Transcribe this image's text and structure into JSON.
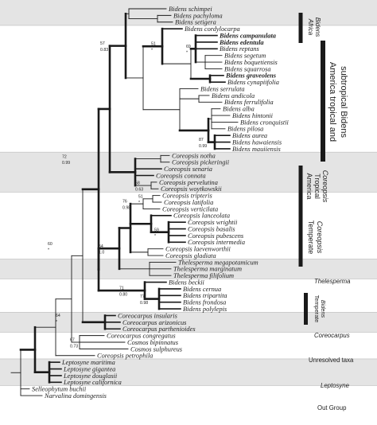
{
  "figure": {
    "taxa": [
      {
        "name": "Bidens schimpei",
        "bold": false
      },
      {
        "name": "Bidens pachyloma",
        "bold": false
      },
      {
        "name": "Bidens setigera",
        "bold": false
      },
      {
        "name": "Bidens cordylocarpa",
        "bold": false
      },
      {
        "name": "Bidens campanulata",
        "bold": true
      },
      {
        "name": "Bidens edentula",
        "bold": true
      },
      {
        "name": "Bidens reptans",
        "bold": false
      },
      {
        "name": "Bidens segetum",
        "bold": false
      },
      {
        "name": "Bidens boquetiensis",
        "bold": false
      },
      {
        "name": "Bidens squarrosa",
        "bold": false
      },
      {
        "name": "Bidens graveolens",
        "bold": true
      },
      {
        "name": "Bidens cynapiifolia",
        "bold": false
      },
      {
        "name": "Bidens serrulata",
        "bold": false
      },
      {
        "name": "Bidens andicola",
        "bold": false
      },
      {
        "name": "Bidens ferrulifolia",
        "bold": false
      },
      {
        "name": "Bidens alba",
        "bold": false
      },
      {
        "name": "Bidens hintonii",
        "bold": false
      },
      {
        "name": "Bidens cronquistii",
        "bold": false
      },
      {
        "name": "Bidens pilosa",
        "bold": false
      },
      {
        "name": "Bidens aurea",
        "bold": false
      },
      {
        "name": "Bidens hawaiensis",
        "bold": false
      },
      {
        "name": "Bidens mauiiensis",
        "bold": false
      },
      {
        "name": "Coreopsis notha",
        "bold": false
      },
      {
        "name": "Coreopsis pickeringii",
        "bold": false
      },
      {
        "name": "Coreopsis senaria",
        "bold": false
      },
      {
        "name": "Coreopsis connata",
        "bold": false
      },
      {
        "name": "Coreopsis pervelutina",
        "bold": false
      },
      {
        "name": "Coreopsis woytkowskii",
        "bold": false
      },
      {
        "name": "Coreopsis tripteris",
        "bold": false
      },
      {
        "name": "Coreopsis latifolia",
        "bold": false
      },
      {
        "name": "Coreopsis verticilata",
        "bold": false
      },
      {
        "name": "Coreopsis lanceolata",
        "bold": false
      },
      {
        "name": "Coreopsis wrightii",
        "bold": false
      },
      {
        "name": "Coreopsis basalis",
        "bold": false
      },
      {
        "name": "Coreopsis pubescens",
        "bold": false
      },
      {
        "name": "Coreopsis intermedia",
        "bold": false
      },
      {
        "name": "Coreopsis laevenworthii",
        "bold": false
      },
      {
        "name": "Coreopsis gladiata",
        "bold": false
      },
      {
        "name": "Thelesperma megapotamicum",
        "bold": false
      },
      {
        "name": "Thelesperma marginatum",
        "bold": false
      },
      {
        "name": "Thelesperma filifolium",
        "bold": false
      },
      {
        "name": "Bidens beckii",
        "bold": false
      },
      {
        "name": "Bidens cernua",
        "bold": false
      },
      {
        "name": "Bidens tripartita",
        "bold": false
      },
      {
        "name": "Bidens frondosa",
        "bold": false
      },
      {
        "name": "Bidens polylepis",
        "bold": false
      },
      {
        "name": "Coreocarpus insularis",
        "bold": false
      },
      {
        "name": "Coreocarpus arizonicus",
        "bold": false
      },
      {
        "name": "Coreocarpus parthenioides",
        "bold": false
      },
      {
        "name": "Coreocarpus congregatus",
        "bold": false
      },
      {
        "name": "Cosmos bipinnatus",
        "bold": false
      },
      {
        "name": "Cosmos sulphureus",
        "bold": false
      },
      {
        "name": "Coreopsis petrophila",
        "bold": false
      },
      {
        "name": "Leptosyne maritima",
        "bold": false
      },
      {
        "name": "Leptosyne gigantea",
        "bold": false
      },
      {
        "name": "Leptosyne douglasii",
        "bold": false
      },
      {
        "name": "Leptosyne californica",
        "bold": false
      },
      {
        "name": "Selleophytum buchii",
        "bold": false
      },
      {
        "name": "Narvalina domingensis",
        "bold": false
      }
    ],
    "support_labels": [
      {
        "id": "n-camp",
        "top": "69",
        "bottom": "*"
      },
      {
        "id": "n-trop",
        "top": "51",
        "bottom": "*"
      },
      {
        "id": "n-hawaii",
        "top": "87",
        "bottom": "0.99"
      },
      {
        "id": "n-bidens",
        "top": "57",
        "bottom": "0.83"
      },
      {
        "id": "n-pervel",
        "top": "58",
        "bottom": "0.63"
      },
      {
        "id": "n-tripteris",
        "top": "51",
        "bottom": "*"
      },
      {
        "id": "n-verticil",
        "top": "76",
        "bottom": "0.98"
      },
      {
        "id": "n-wrightii",
        "top": "59",
        "bottom": "*"
      },
      {
        "id": "n-cx",
        "top": "72",
        "bottom": "0.99"
      },
      {
        "id": "n-temperate",
        "top": "54",
        "bottom": "1.0"
      },
      {
        "id": "n-frondosa",
        "top": "77",
        "bottom": "0.98"
      },
      {
        "id": "n-tempbid",
        "top": "71",
        "bottom": "0.80"
      },
      {
        "id": "n-cm",
        "top": "60",
        "bottom": "*"
      },
      {
        "id": "n-cosmos",
        "top": "67",
        "bottom": "0.73"
      },
      {
        "id": "n-root",
        "top": "64",
        "bottom": "*"
      }
    ],
    "groups": {
      "africa_line1": "Africa",
      "africa_line2": "Bidens",
      "america_trop_line1": "America tropical and",
      "america_trop_line2": "subtropical Bidens",
      "cor_trop_line1": "America",
      "cor_trop_line2": "Tropical",
      "cor_trop_line3": "Coreopsis",
      "temp_cor_line1": "Temperate",
      "temp_cor_line2": "Coreopsis",
      "thelesperma": "Thelesperma",
      "temp_bidens_line1": "Temperate",
      "temp_bidens_line2": "Bidens",
      "coreocarpus": "Coreocarpus",
      "unresolved": "Unresolved taxa",
      "leptosyne": "Leptosyne",
      "outgroup": "Out Group"
    },
    "colors": {
      "band_gray": "#e4e4e4",
      "bar": "#1a1a1a",
      "branch": "#1a1a1a",
      "text": "#1e1e1e",
      "divider": "#bdbdbd"
    }
  }
}
